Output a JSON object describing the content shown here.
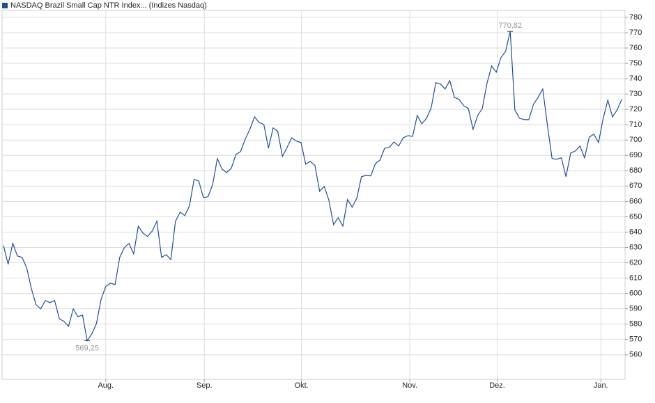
{
  "chart_data": {
    "type": "line",
    "title": "NASDAQ Brazil Small Cap NTR Index... (Indizes Nasdaq)",
    "series": [
      {
        "name": "NASDAQ Brazil Small Cap NTR Index... (Indizes Nasdaq)",
        "color": "#1f4f9c",
        "values": [
          631.2,
          619,
          632.6,
          624.4,
          623.5,
          616.7,
          603.1,
          592.7,
          589.9,
          595.4,
          594,
          595.4,
          583.6,
          581.8,
          578.6,
          589.9,
          584.9,
          585.9,
          569.25,
          573.6,
          580.4,
          596.3,
          604.5,
          606.7,
          605.8,
          623.5,
          629.9,
          632.6,
          625.8,
          643.9,
          639.4,
          637.1,
          640.7,
          647.1,
          623.5,
          625.3,
          622.1,
          647.1,
          653,
          650.7,
          657.1,
          674.3,
          673.4,
          662.5,
          663,
          671.1,
          687.9,
          681.1,
          678.8,
          681.6,
          690.6,
          692.5,
          700.6,
          707,
          715.1,
          711.5,
          710.2,
          694.7,
          707.9,
          705.6,
          689.3,
          695.2,
          701.5,
          699.3,
          698.4,
          684.3,
          686.1,
          683.4,
          666.6,
          669.8,
          660.7,
          644.8,
          649.4,
          643.9,
          661.2,
          656.2,
          662.1,
          676.1,
          677,
          676.6,
          684.7,
          687,
          694.7,
          695.2,
          698.8,
          696.1,
          701.5,
          702.9,
          702.4,
          716,
          710.6,
          714.2,
          721,
          737.4,
          736.5,
          733.3,
          738.7,
          727.8,
          726.5,
          722.4,
          720.6,
          707,
          716,
          720.6,
          736.9,
          748.3,
          744.2,
          753.7,
          757.8,
          770.82,
          719.7,
          714.2,
          713.3,
          713.3,
          723.3,
          727.8,
          733.3,
          709.7,
          687.9,
          687.5,
          688.4,
          676.1,
          691.5,
          692.9,
          696.1,
          688.4,
          702,
          703.8,
          698.4,
          714.2,
          726,
          715.1,
          719.7,
          726.5
        ]
      }
    ],
    "annotations": [
      {
        "x": 109,
        "y": 770.82,
        "text": "770,82"
      },
      {
        "x": 18,
        "y": 569.25,
        "text": "569,25"
      }
    ],
    "xlim": [
      -0.3,
      133.7
    ],
    "xticks": [
      {
        "value": 22,
        "label": "Aug."
      },
      {
        "value": 43.2,
        "label": "Sep."
      },
      {
        "value": 64.1,
        "label": "Okt."
      },
      {
        "value": 87.4,
        "label": "Nov."
      },
      {
        "value": 106.2,
        "label": "Dez."
      },
      {
        "value": 128.5,
        "label": "Jan."
      }
    ],
    "ylim": [
      544,
      784.5
    ],
    "yticks": [
      560,
      570,
      580,
      590,
      600,
      610,
      620,
      630,
      640,
      650,
      660,
      670,
      680,
      690,
      700,
      710,
      720,
      730,
      740,
      750,
      760,
      770,
      780
    ],
    "grid": true
  }
}
